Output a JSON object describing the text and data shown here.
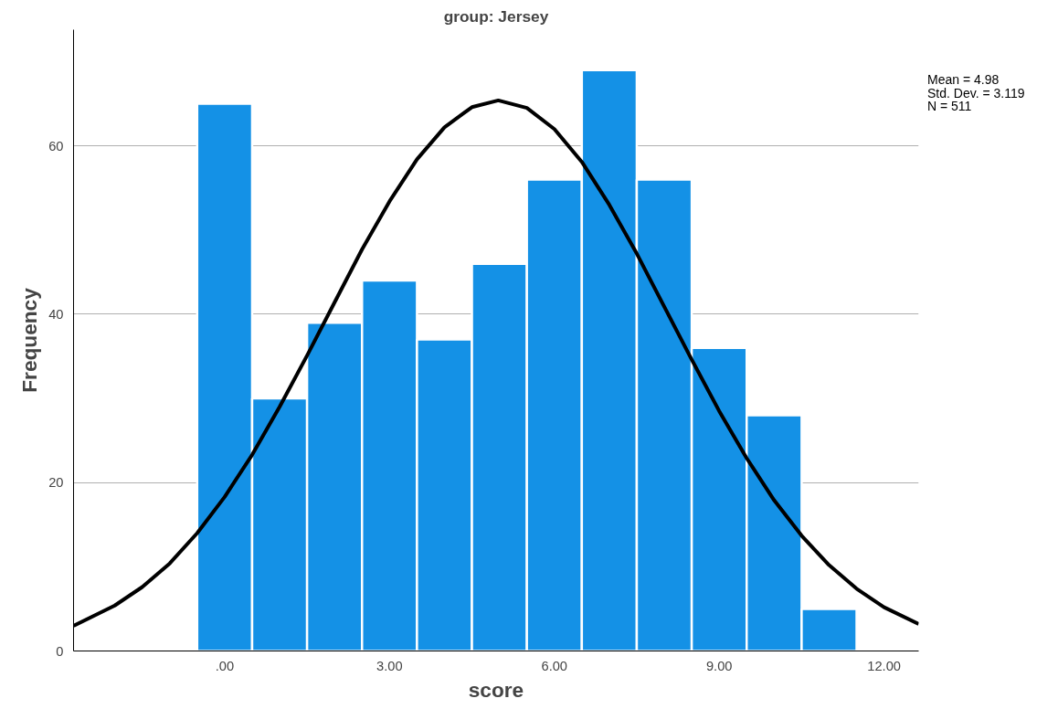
{
  "chart_data": {
    "type": "histogram",
    "title": "group: Jersey",
    "xlabel": "score",
    "ylabel": "Frequency",
    "xlim": [
      -2.75,
      12.63
    ],
    "ylim": [
      0,
      73.8
    ],
    "xticks": [
      {
        "value": 0,
        "label": ".00"
      },
      {
        "value": 3,
        "label": "3.00"
      },
      {
        "value": 6,
        "label": "6.00"
      },
      {
        "value": 9,
        "label": "9.00"
      },
      {
        "value": 12,
        "label": "12.00"
      }
    ],
    "yticks": [
      0,
      20,
      40,
      60
    ],
    "grid": "y",
    "annotations": [
      "Mean = 4.98",
      "Std. Dev. = 3.119",
      "N = 511"
    ],
    "series": [
      {
        "color": "#1491e6",
        "bins": [
          -0.5,
          0.5,
          1.5,
          2.5,
          3.5,
          4.5,
          5.5,
          6.5,
          7.5,
          8.5,
          9.5,
          10.5,
          11.5
        ],
        "values": [
          65,
          30,
          39,
          44,
          37,
          46,
          56,
          69,
          56,
          36,
          28,
          5
        ]
      },
      {
        "type": "line",
        "color": "#000000",
        "x": [
          -2.75,
          -2,
          -1.5,
          -1,
          -0.5,
          0,
          0.5,
          1,
          1.5,
          2,
          2.5,
          3,
          3.5,
          4,
          4.5,
          4.98,
          5.5,
          6,
          6.5,
          7,
          7.5,
          8,
          8.5,
          9,
          9.5,
          10,
          10.5,
          11,
          11.5,
          12,
          12.63
        ],
        "values": [
          3.0,
          5.4,
          7.6,
          10.4,
          14.0,
          18.3,
          23.3,
          29.0,
          35.1,
          41.4,
          47.7,
          53.4,
          58.4,
          62.2,
          64.6,
          65.4,
          64.5,
          62.0,
          58.1,
          53.0,
          47.2,
          40.9,
          34.6,
          28.5,
          22.9,
          17.9,
          13.7,
          10.2,
          7.4,
          5.2,
          3.2
        ]
      }
    ]
  }
}
